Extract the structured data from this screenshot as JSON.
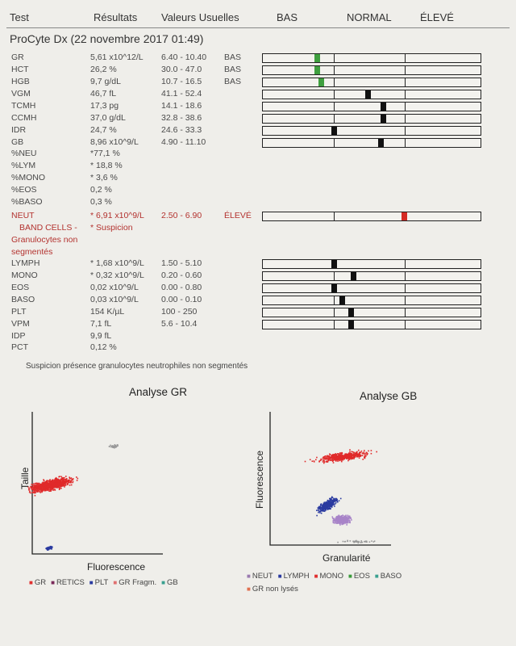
{
  "header": {
    "test": "Test",
    "results": "Résultats",
    "ref": "Valeurs Usuelles",
    "low": "BAS",
    "normal": "NORMAL",
    "high": "ÉLEVÉ"
  },
  "subtitle": "ProCyte Dx (22 novembre 2017 01:49)",
  "rows": [
    {
      "name": "GR",
      "value": "5,61 x10^12/L",
      "ref": "6.40 - 10.40",
      "flag": "BAS",
      "level": 0.24,
      "color": "#3f9f3f"
    },
    {
      "name": "HCT",
      "value": "26,2 %",
      "ref": "30.0 - 47.0",
      "flag": "BAS",
      "level": 0.24,
      "color": "#3f9f3f"
    },
    {
      "name": "HGB",
      "value": "9,7 g/dL",
      "ref": "10.7 - 16.5",
      "flag": "BAS",
      "level": 0.26,
      "color": "#3f9f3f"
    },
    {
      "name": "VGM",
      "value": "46,7 fL",
      "ref": "41.1 - 52.4",
      "flag": "",
      "level": 0.48,
      "color": "#111111"
    },
    {
      "name": "TCMH",
      "value": "17,3 pg",
      "ref": "14.1 - 18.6",
      "flag": "",
      "level": 0.55,
      "color": "#111111"
    },
    {
      "name": "CCMH",
      "value": "37,0 g/dL",
      "ref": "32.8 - 38.6",
      "flag": "",
      "level": 0.55,
      "color": "#111111"
    },
    {
      "name": "IDR",
      "value": "24,7 %",
      "ref": "24.6 - 33.3",
      "flag": "",
      "level": 0.32,
      "color": "#111111"
    },
    {
      "name": "GB",
      "value": "8,96 x10^9/L",
      "ref": "4.90 - 11.10",
      "flag": "",
      "level": 0.54,
      "color": "#111111"
    },
    {
      "name": "%NEU",
      "value": "*77,1 %",
      "ref": "",
      "flag": ""
    },
    {
      "name": "%LYM",
      "value": "* 18,8 %",
      "ref": "",
      "flag": ""
    },
    {
      "name": "%MONO",
      "value": "* 3,6 %",
      "ref": "",
      "flag": ""
    },
    {
      "name": "%EOS",
      "value": "0,2 %",
      "ref": "",
      "flag": ""
    },
    {
      "name": "%BASO",
      "value": "0,3 %",
      "ref": "",
      "flag": ""
    },
    {
      "name": "NEUT",
      "value": "* 6,91 x10^9/L",
      "ref": "2.50 - 6.90",
      "flag": "ÉLEVÉ",
      "level": 0.65,
      "color": "#d42a24",
      "red": true
    },
    {
      "name": "BAND CELLS -",
      "value": "* Suspicion",
      "ref": "",
      "flag": "",
      "red": true,
      "indent": true
    },
    {
      "name": "Granulocytes non",
      "value": "",
      "ref": "",
      "flag": "",
      "red": true,
      "indent": true
    },
    {
      "name": "segmentés",
      "value": "",
      "ref": "",
      "flag": "",
      "red": true,
      "indent": true
    },
    {
      "name": "LYMPH",
      "value": "* 1,68 x10^9/L",
      "ref": "1.50 - 5.10",
      "flag": "",
      "level": 0.32,
      "color": "#111111"
    },
    {
      "name": "MONO",
      "value": "* 0,32 x10^9/L",
      "ref": "0.20 - 0.60",
      "flag": "",
      "level": 0.41,
      "color": "#111111"
    },
    {
      "name": "EOS",
      "value": "0,02 x10^9/L",
      "ref": "0.00 - 0.80",
      "flag": "",
      "level": 0.32,
      "color": "#111111"
    },
    {
      "name": "BASO",
      "value": "0,03 x10^9/L",
      "ref": "0.00 - 0.10",
      "flag": "",
      "level": 0.36,
      "color": "#111111"
    },
    {
      "name": "PLT",
      "value": "154 K/µL",
      "ref": "100 - 250",
      "flag": "",
      "level": 0.4,
      "color": "#111111"
    },
    {
      "name": "VPM",
      "value": "7,1 fL",
      "ref": "5.6 - 10.4",
      "flag": "",
      "level": 0.4,
      "color": "#111111"
    },
    {
      "name": "IDP",
      "value": "9,9 fL",
      "ref": "",
      "flag": ""
    },
    {
      "name": "PCT",
      "value": "0,12 %",
      "ref": "",
      "flag": ""
    }
  ],
  "note": "Suspicion présence granulocytes neutrophiles non segmentés",
  "gr_plot": {
    "title": "Analyse GR",
    "xlabel": "Fluorescence",
    "ylabel": "Taille"
  },
  "gb_plot": {
    "title": "Analyse GB",
    "xlabel": "Granularité",
    "ylabel": "Fluorescence"
  },
  "gr_legend": [
    {
      "label": "GR",
      "color": "#e03030"
    },
    {
      "label": "RETICS",
      "color": "#7a2a5a"
    },
    {
      "label": "PLT",
      "color": "#2a3aa0"
    },
    {
      "label": "GR Fragm.",
      "color": "#e07070"
    },
    {
      "label": "GB",
      "color": "#3aa090"
    }
  ],
  "gb_legend": [
    {
      "label": "NEUT",
      "color": "#9a7ab0"
    },
    {
      "label": "LYMPH",
      "color": "#2a3aa0"
    },
    {
      "label": "MONO",
      "color": "#e03030"
    },
    {
      "label": "EOS",
      "color": "#3a9a3a"
    },
    {
      "label": "BASO",
      "color": "#3aa090"
    }
  ],
  "gb_legend2": {
    "label": "GR non lysés",
    "color": "#e07050"
  }
}
